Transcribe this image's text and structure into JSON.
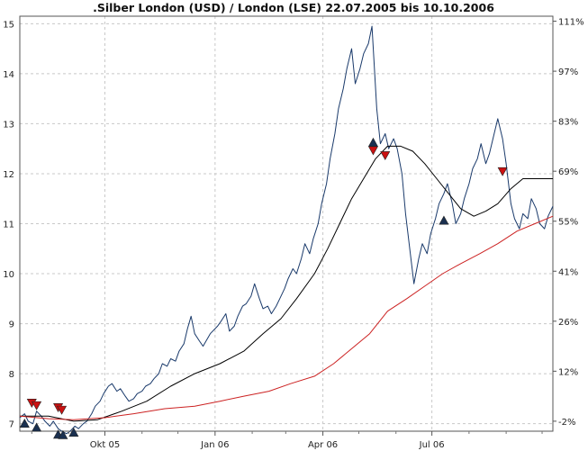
{
  "chart_data": {
    "type": "line",
    "title": ".Silber London (USD) / London (LSE) 22.07.2005 bis 10.10.2006",
    "xlabel": "",
    "ylabel": "",
    "x_range": [
      "2005-07-22",
      "2006-10-10"
    ],
    "ylim": [
      6.85,
      15.15
    ],
    "grid": true,
    "x_ticks": [
      {
        "date": "2005-10-01",
        "label": "Okt 05"
      },
      {
        "date": "2006-01-01",
        "label": "Jan 06"
      },
      {
        "date": "2006-04-01",
        "label": "Apr 06"
      },
      {
        "date": "2006-07-01",
        "label": "Jul 06"
      }
    ],
    "y_ticks_left": [
      7,
      8,
      9,
      10,
      11,
      12,
      13,
      14,
      15
    ],
    "y_ticks_right": [
      {
        "value": 7.05,
        "label": "-2%"
      },
      {
        "value": 8.05,
        "label": "12%"
      },
      {
        "value": 9.05,
        "label": "26%"
      },
      {
        "value": 10.05,
        "label": "41%"
      },
      {
        "value": 11.05,
        "label": "55%"
      },
      {
        "value": 12.05,
        "label": "69%"
      },
      {
        "value": 13.05,
        "label": "83%"
      },
      {
        "value": 14.05,
        "label": "97%"
      },
      {
        "value": 15.05,
        "label": "111%"
      }
    ],
    "series": [
      {
        "style": "price",
        "color": "#1a3a6b",
        "points": [
          [
            "2005-07-22",
            7.12
          ],
          [
            "2005-07-26",
            7.2
          ],
          [
            "2005-07-29",
            7.05
          ],
          [
            "2005-08-02",
            7.0
          ],
          [
            "2005-08-05",
            7.25
          ],
          [
            "2005-08-09",
            7.15
          ],
          [
            "2005-08-12",
            7.05
          ],
          [
            "2005-08-16",
            6.95
          ],
          [
            "2005-08-19",
            7.05
          ],
          [
            "2005-08-23",
            6.9
          ],
          [
            "2005-08-26",
            6.85
          ],
          [
            "2005-08-30",
            6.8
          ],
          [
            "2005-09-02",
            6.85
          ],
          [
            "2005-09-06",
            6.95
          ],
          [
            "2005-09-09",
            6.9
          ],
          [
            "2005-09-13",
            7.0
          ],
          [
            "2005-09-16",
            7.05
          ],
          [
            "2005-09-20",
            7.2
          ],
          [
            "2005-09-23",
            7.35
          ],
          [
            "2005-09-27",
            7.45
          ],
          [
            "2005-09-30",
            7.6
          ],
          [
            "2005-10-04",
            7.75
          ],
          [
            "2005-10-07",
            7.8
          ],
          [
            "2005-10-11",
            7.65
          ],
          [
            "2005-10-14",
            7.7
          ],
          [
            "2005-10-18",
            7.55
          ],
          [
            "2005-10-21",
            7.45
          ],
          [
            "2005-10-25",
            7.5
          ],
          [
            "2005-10-28",
            7.6
          ],
          [
            "2005-11-01",
            7.65
          ],
          [
            "2005-11-04",
            7.75
          ],
          [
            "2005-11-08",
            7.8
          ],
          [
            "2005-11-11",
            7.9
          ],
          [
            "2005-11-15",
            8.0
          ],
          [
            "2005-11-18",
            8.2
          ],
          [
            "2005-11-22",
            8.15
          ],
          [
            "2005-11-25",
            8.3
          ],
          [
            "2005-11-29",
            8.25
          ],
          [
            "2005-12-02",
            8.45
          ],
          [
            "2005-12-06",
            8.6
          ],
          [
            "2005-12-09",
            8.9
          ],
          [
            "2005-12-12",
            9.15
          ],
          [
            "2005-12-15",
            8.8
          ],
          [
            "2005-12-19",
            8.65
          ],
          [
            "2005-12-22",
            8.55
          ],
          [
            "2005-12-28",
            8.8
          ],
          [
            "2006-01-03",
            8.95
          ],
          [
            "2006-01-06",
            9.05
          ],
          [
            "2006-01-10",
            9.2
          ],
          [
            "2006-01-13",
            8.85
          ],
          [
            "2006-01-17",
            8.95
          ],
          [
            "2006-01-20",
            9.15
          ],
          [
            "2006-01-24",
            9.35
          ],
          [
            "2006-01-27",
            9.4
          ],
          [
            "2006-01-31",
            9.55
          ],
          [
            "2006-02-03",
            9.8
          ],
          [
            "2006-02-07",
            9.5
          ],
          [
            "2006-02-10",
            9.3
          ],
          [
            "2006-02-14",
            9.35
          ],
          [
            "2006-02-17",
            9.2
          ],
          [
            "2006-02-21",
            9.35
          ],
          [
            "2006-02-24",
            9.5
          ],
          [
            "2006-02-28",
            9.7
          ],
          [
            "2006-03-03",
            9.9
          ],
          [
            "2006-03-07",
            10.1
          ],
          [
            "2006-03-10",
            10.0
          ],
          [
            "2006-03-14",
            10.3
          ],
          [
            "2006-03-17",
            10.6
          ],
          [
            "2006-03-21",
            10.4
          ],
          [
            "2006-03-24",
            10.7
          ],
          [
            "2006-03-28",
            11.0
          ],
          [
            "2006-03-31",
            11.4
          ],
          [
            "2006-04-04",
            11.8
          ],
          [
            "2006-04-07",
            12.3
          ],
          [
            "2006-04-11",
            12.8
          ],
          [
            "2006-04-14",
            13.3
          ],
          [
            "2006-04-18",
            13.7
          ],
          [
            "2006-04-21",
            14.1
          ],
          [
            "2006-04-25",
            14.5
          ],
          [
            "2006-04-28",
            13.8
          ],
          [
            "2006-05-02",
            14.1
          ],
          [
            "2006-05-05",
            14.4
          ],
          [
            "2006-05-09",
            14.6
          ],
          [
            "2006-05-12",
            14.95
          ],
          [
            "2006-05-16",
            13.3
          ],
          [
            "2006-05-19",
            12.6
          ],
          [
            "2006-05-23",
            12.8
          ],
          [
            "2006-05-26",
            12.5
          ],
          [
            "2006-05-30",
            12.7
          ],
          [
            "2006-06-02",
            12.5
          ],
          [
            "2006-06-06",
            12.0
          ],
          [
            "2006-06-09",
            11.2
          ],
          [
            "2006-06-13",
            10.4
          ],
          [
            "2006-06-16",
            9.8
          ],
          [
            "2006-06-20",
            10.3
          ],
          [
            "2006-06-23",
            10.6
          ],
          [
            "2006-06-27",
            10.4
          ],
          [
            "2006-06-30",
            10.8
          ],
          [
            "2006-07-04",
            11.1
          ],
          [
            "2006-07-07",
            11.4
          ],
          [
            "2006-07-11",
            11.6
          ],
          [
            "2006-07-14",
            11.8
          ],
          [
            "2006-07-18",
            11.4
          ],
          [
            "2006-07-21",
            11.0
          ],
          [
            "2006-07-25",
            11.2
          ],
          [
            "2006-07-28",
            11.5
          ],
          [
            "2006-08-01",
            11.8
          ],
          [
            "2006-08-04",
            12.1
          ],
          [
            "2006-08-08",
            12.3
          ],
          [
            "2006-08-11",
            12.6
          ],
          [
            "2006-08-15",
            12.2
          ],
          [
            "2006-08-18",
            12.4
          ],
          [
            "2006-08-22",
            12.8
          ],
          [
            "2006-08-25",
            13.1
          ],
          [
            "2006-08-29",
            12.7
          ],
          [
            "2006-09-01",
            12.2
          ],
          [
            "2006-09-05",
            11.4
          ],
          [
            "2006-09-08",
            11.1
          ],
          [
            "2006-09-12",
            10.9
          ],
          [
            "2006-09-15",
            11.2
          ],
          [
            "2006-09-19",
            11.1
          ],
          [
            "2006-09-22",
            11.5
          ],
          [
            "2006-09-26",
            11.3
          ],
          [
            "2006-09-29",
            11.0
          ],
          [
            "2006-10-03",
            10.9
          ],
          [
            "2006-10-06",
            11.15
          ],
          [
            "2006-10-10",
            11.35
          ]
        ]
      },
      {
        "style": "moving-average-short",
        "color": "#000000",
        "points": [
          [
            "2005-07-22",
            7.15
          ],
          [
            "2005-08-15",
            7.15
          ],
          [
            "2005-09-05",
            7.05
          ],
          [
            "2005-09-25",
            7.08
          ],
          [
            "2005-10-15",
            7.25
          ],
          [
            "2005-11-05",
            7.45
          ],
          [
            "2005-11-25",
            7.75
          ],
          [
            "2005-12-15",
            8.0
          ],
          [
            "2006-01-05",
            8.2
          ],
          [
            "2006-01-25",
            8.45
          ],
          [
            "2006-02-10",
            8.8
          ],
          [
            "2006-02-25",
            9.1
          ],
          [
            "2006-03-10",
            9.5
          ],
          [
            "2006-03-25",
            10.0
          ],
          [
            "2006-04-05",
            10.5
          ],
          [
            "2006-04-15",
            11.0
          ],
          [
            "2006-04-25",
            11.5
          ],
          [
            "2006-05-05",
            11.9
          ],
          [
            "2006-05-15",
            12.3
          ],
          [
            "2006-05-25",
            12.55
          ],
          [
            "2006-06-05",
            12.55
          ],
          [
            "2006-06-15",
            12.45
          ],
          [
            "2006-06-25",
            12.2
          ],
          [
            "2006-07-05",
            11.9
          ],
          [
            "2006-07-15",
            11.6
          ],
          [
            "2006-07-25",
            11.3
          ],
          [
            "2006-08-05",
            11.15
          ],
          [
            "2006-08-15",
            11.25
          ],
          [
            "2006-08-25",
            11.4
          ],
          [
            "2006-09-05",
            11.7
          ],
          [
            "2006-09-15",
            11.9
          ],
          [
            "2006-09-25",
            11.9
          ],
          [
            "2006-10-10",
            11.9
          ]
        ]
      },
      {
        "style": "moving-average-long",
        "color": "#cc2222",
        "points": [
          [
            "2005-07-22",
            7.15
          ],
          [
            "2005-08-15",
            7.1
          ],
          [
            "2005-09-05",
            7.08
          ],
          [
            "2005-10-01",
            7.12
          ],
          [
            "2005-10-25",
            7.2
          ],
          [
            "2005-11-20",
            7.3
          ],
          [
            "2005-12-15",
            7.35
          ],
          [
            "2006-01-05",
            7.45
          ],
          [
            "2006-01-25",
            7.55
          ],
          [
            "2006-02-15",
            7.65
          ],
          [
            "2006-03-05",
            7.8
          ],
          [
            "2006-03-25",
            7.95
          ],
          [
            "2006-04-10",
            8.2
          ],
          [
            "2006-04-25",
            8.5
          ],
          [
            "2006-05-10",
            8.8
          ],
          [
            "2006-05-25",
            9.25
          ],
          [
            "2006-06-10",
            9.5
          ],
          [
            "2006-06-25",
            9.75
          ],
          [
            "2006-07-10",
            10.0
          ],
          [
            "2006-07-25",
            10.2
          ],
          [
            "2006-08-10",
            10.4
          ],
          [
            "2006-08-25",
            10.6
          ],
          [
            "2006-09-10",
            10.85
          ],
          [
            "2006-09-25",
            11.0
          ],
          [
            "2006-10-10",
            11.15
          ]
        ]
      }
    ],
    "signals": [
      {
        "date": "2005-07-26",
        "type": "buy",
        "value": 7.0
      },
      {
        "date": "2005-08-01",
        "type": "sell",
        "value": 7.42
      },
      {
        "date": "2005-08-05",
        "type": "sell",
        "value": 7.37
      },
      {
        "date": "2005-08-05",
        "type": "buy",
        "value": 6.92
      },
      {
        "date": "2005-08-23",
        "type": "sell",
        "value": 7.33
      },
      {
        "date": "2005-08-26",
        "type": "sell",
        "value": 7.28
      },
      {
        "date": "2005-08-23",
        "type": "buy",
        "value": 6.78
      },
      {
        "date": "2005-08-27",
        "type": "buy",
        "value": 6.77
      },
      {
        "date": "2005-09-05",
        "type": "buy",
        "value": 6.82
      },
      {
        "date": "2006-05-13",
        "type": "buy",
        "value": 12.62
      },
      {
        "date": "2006-05-13",
        "type": "sell",
        "value": 12.47
      },
      {
        "date": "2006-05-23",
        "type": "sell",
        "value": 12.37
      },
      {
        "date": "2006-07-11",
        "type": "buy",
        "value": 11.06
      },
      {
        "date": "2006-08-29",
        "type": "sell",
        "value": 12.05
      }
    ],
    "colors": {
      "price": "#1a3a6b",
      "ma_short": "#000000",
      "ma_long": "#cc2222",
      "sell_marker": "#cc1111",
      "buy_marker": "#1a3050",
      "grid": "#c8c8c8"
    }
  }
}
